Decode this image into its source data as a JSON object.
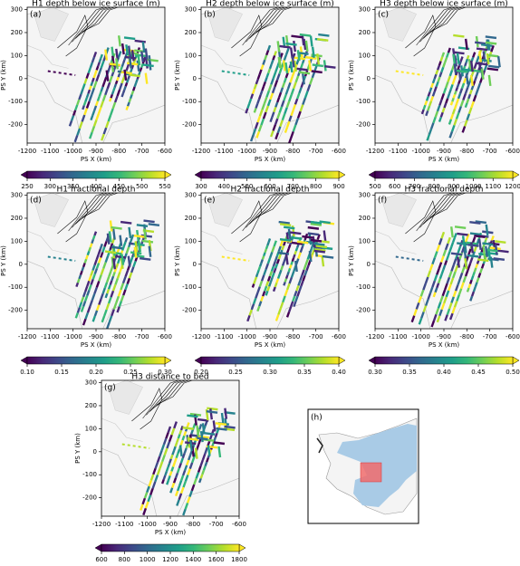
{
  "chart_data": [
    {
      "type": "map",
      "label": "(a)",
      "title": "H1 depth below ice surface (m)",
      "xlabel": "PS X (km)",
      "ylabel": "PS Y (km)",
      "xlim": [
        -1200,
        -600
      ],
      "ylim": [
        -280,
        310
      ],
      "xticks": [
        -1200,
        -1100,
        -1000,
        -900,
        -800,
        -700,
        -600
      ],
      "yticks": [
        -200,
        -100,
        0,
        100,
        200,
        300
      ],
      "colorbar": {
        "colormap": "viridis",
        "lim": [
          250,
          550
        ],
        "ticks": [
          250,
          300,
          350,
          400,
          450,
          500,
          550
        ]
      }
    },
    {
      "type": "map",
      "label": "(b)",
      "title": "H2 depth below ice surface (m)",
      "xlabel": "PS X (km)",
      "ylabel": "PS Y (km)",
      "xlim": [
        -1200,
        -600
      ],
      "ylim": [
        -280,
        310
      ],
      "xticks": [
        -1200,
        -1100,
        -1000,
        -900,
        -800,
        -700,
        -600
      ],
      "yticks": [
        -200,
        -100,
        0,
        100,
        200,
        300
      ],
      "colorbar": {
        "colormap": "viridis",
        "lim": [
          300,
          900
        ],
        "ticks": [
          300,
          400,
          500,
          600,
          700,
          800,
          900
        ]
      }
    },
    {
      "type": "map",
      "label": "(c)",
      "title": "H3 depth below ice surface (m)",
      "xlabel": "PS X (km)",
      "ylabel": "PS Y (km)",
      "xlim": [
        -1200,
        -600
      ],
      "ylim": [
        -280,
        310
      ],
      "xticks": [
        -1200,
        -1100,
        -1000,
        -900,
        -800,
        -700,
        -600
      ],
      "yticks": [
        -200,
        -100,
        0,
        100,
        200,
        300
      ],
      "colorbar": {
        "colormap": "viridis",
        "lim": [
          500,
          1200
        ],
        "ticks": [
          500,
          600,
          700,
          800,
          900,
          1000,
          1100,
          1200
        ]
      }
    },
    {
      "type": "map",
      "label": "(d)",
      "title": "H1 fractional depth",
      "xlabel": "PS X (km)",
      "ylabel": "PS Y (km)",
      "xlim": [
        -1200,
        -600
      ],
      "ylim": [
        -280,
        310
      ],
      "xticks": [
        -1200,
        -1100,
        -1000,
        -900,
        -800,
        -700,
        -600
      ],
      "yticks": [
        -200,
        -100,
        0,
        100,
        200,
        300
      ],
      "colorbar": {
        "colormap": "viridis",
        "lim": [
          0.1,
          0.3
        ],
        "ticks": [
          {
            "value": 0.1,
            "label": "0.10"
          },
          0.15,
          {
            "value": 0.2,
            "label": "0.20"
          },
          0.25,
          {
            "value": 0.3,
            "label": "0.30"
          }
        ]
      }
    },
    {
      "type": "map",
      "label": "(e)",
      "title": "H2 fractional depth",
      "xlabel": "PS X (km)",
      "ylabel": "PS Y (km)",
      "xlim": [
        -1200,
        -600
      ],
      "ylim": [
        -280,
        310
      ],
      "xticks": [
        -1200,
        -1100,
        -1000,
        -900,
        -800,
        -700,
        -600
      ],
      "yticks": [
        -200,
        -100,
        0,
        100,
        200,
        300
      ],
      "colorbar": {
        "colormap": "viridis",
        "lim": [
          0.2,
          0.4
        ],
        "ticks": [
          {
            "value": 0.2,
            "label": "0.20"
          },
          0.25,
          {
            "value": 0.3,
            "label": "0.30"
          },
          0.35,
          {
            "value": 0.4,
            "label": "0.40"
          }
        ]
      }
    },
    {
      "type": "map",
      "label": "(f)",
      "title": "H3 fractional depth",
      "xlabel": "PS X (km)",
      "ylabel": "PS Y (km)",
      "xlim": [
        -1200,
        -600
      ],
      "ylim": [
        -280,
        310
      ],
      "xticks": [
        -1200,
        -1100,
        -1000,
        -900,
        -800,
        -700,
        -600
      ],
      "yticks": [
        -200,
        -100,
        0,
        100,
        200,
        300
      ],
      "colorbar": {
        "colormap": "viridis",
        "lim": [
          0.3,
          0.5
        ],
        "ticks": [
          {
            "value": 0.3,
            "label": "0.30"
          },
          0.35,
          {
            "value": 0.4,
            "label": "0.40"
          },
          0.45,
          {
            "value": 0.5,
            "label": "0.50"
          }
        ]
      }
    },
    {
      "type": "map",
      "label": "(g)",
      "title": "H3 distance to bed",
      "xlabel": "PS X (km)",
      "ylabel": "PS Y (km)",
      "xlim": [
        -1200,
        -600
      ],
      "ylim": [
        -280,
        310
      ],
      "xticks": [
        -1200,
        -1100,
        -1000,
        -900,
        -800,
        -700,
        -600
      ],
      "yticks": [
        -200,
        -100,
        0,
        100,
        200,
        300
      ],
      "colorbar": {
        "colormap": "viridis",
        "lim": [
          600,
          1800
        ],
        "ticks": [
          600,
          800,
          1000,
          1200,
          1400,
          1600,
          1800
        ]
      }
    }
  ],
  "inset": {
    "label": "(h)"
  }
}
